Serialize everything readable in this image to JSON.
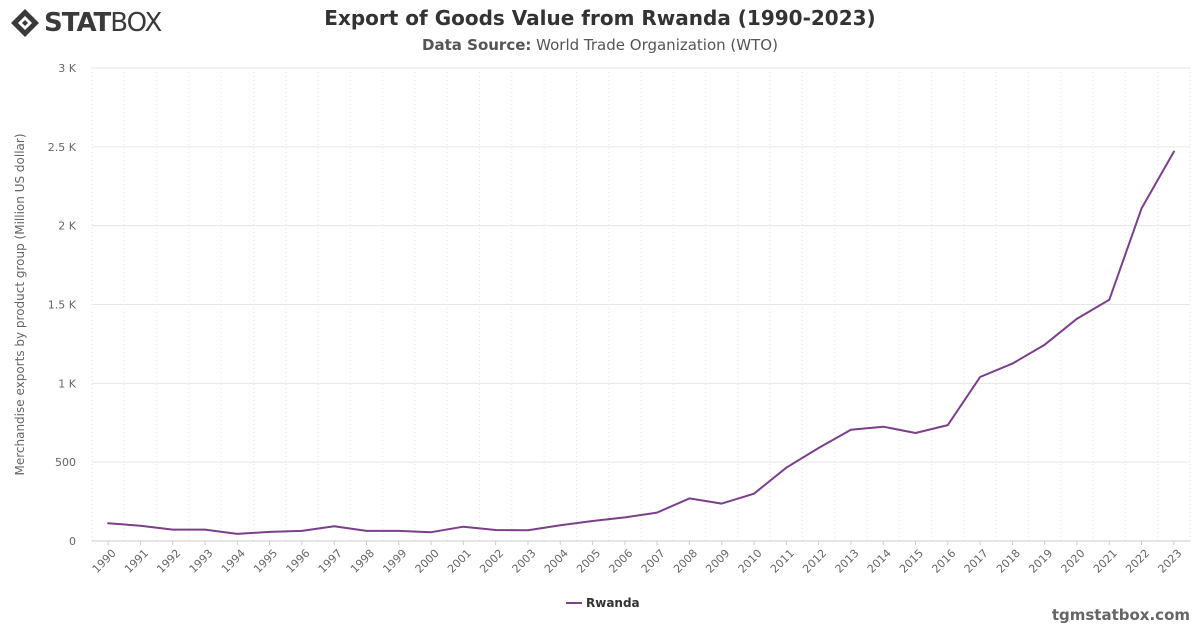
{
  "brand": {
    "stat": "STAT",
    "box": "BOX",
    "logo_icon": "diamond-logo-icon"
  },
  "header": {
    "title": "Export of Goods Value from Rwanda (1990-2023)",
    "source_label": "Data Source:",
    "source_value": "World Trade Organization (WTO)"
  },
  "footer": {
    "watermark": "tgmstatbox.com"
  },
  "colors": {
    "series": "#7b3f8c",
    "grid": "#e6e6e6",
    "text": "#666666"
  },
  "chart_data": {
    "type": "line",
    "title": "Export of Goods Value from Rwanda (1990-2023)",
    "subtitle": "Data Source: World Trade Organization (WTO)",
    "xlabel": "",
    "ylabel": "Merchandise exports by product group (Million US dollar)",
    "ylim": [
      0,
      3000
    ],
    "yticks": [
      {
        "value": 0,
        "label": "0"
      },
      {
        "value": 500,
        "label": "500"
      },
      {
        "value": 1000,
        "label": "1 K"
      },
      {
        "value": 1500,
        "label": "1.5 K"
      },
      {
        "value": 2000,
        "label": "2 K"
      },
      {
        "value": 2500,
        "label": "2.5 K"
      },
      {
        "value": 3000,
        "label": "3 K"
      }
    ],
    "grid": true,
    "legend": "bottom-center",
    "x": [
      "1990",
      "1991",
      "1992",
      "1993",
      "1994",
      "1995",
      "1996",
      "1997",
      "1998",
      "1999",
      "2000",
      "2001",
      "2002",
      "2003",
      "2004",
      "2005",
      "2006",
      "2007",
      "2008",
      "2009",
      "2010",
      "2011",
      "2012",
      "2013",
      "2014",
      "2015",
      "2016",
      "2017",
      "2018",
      "2019",
      "2020",
      "2021",
      "2022",
      "2023"
    ],
    "series": [
      {
        "name": "Rwanda",
        "values": [
          112,
          97,
          72,
          72,
          45,
          58,
          64,
          93,
          64,
          64,
          56,
          91,
          70,
          68,
          100,
          127,
          150,
          180,
          270,
          237,
          300,
          465,
          590,
          705,
          725,
          685,
          735,
          1040,
          1125,
          1245,
          1410,
          1530,
          2110,
          2470
        ]
      }
    ]
  }
}
